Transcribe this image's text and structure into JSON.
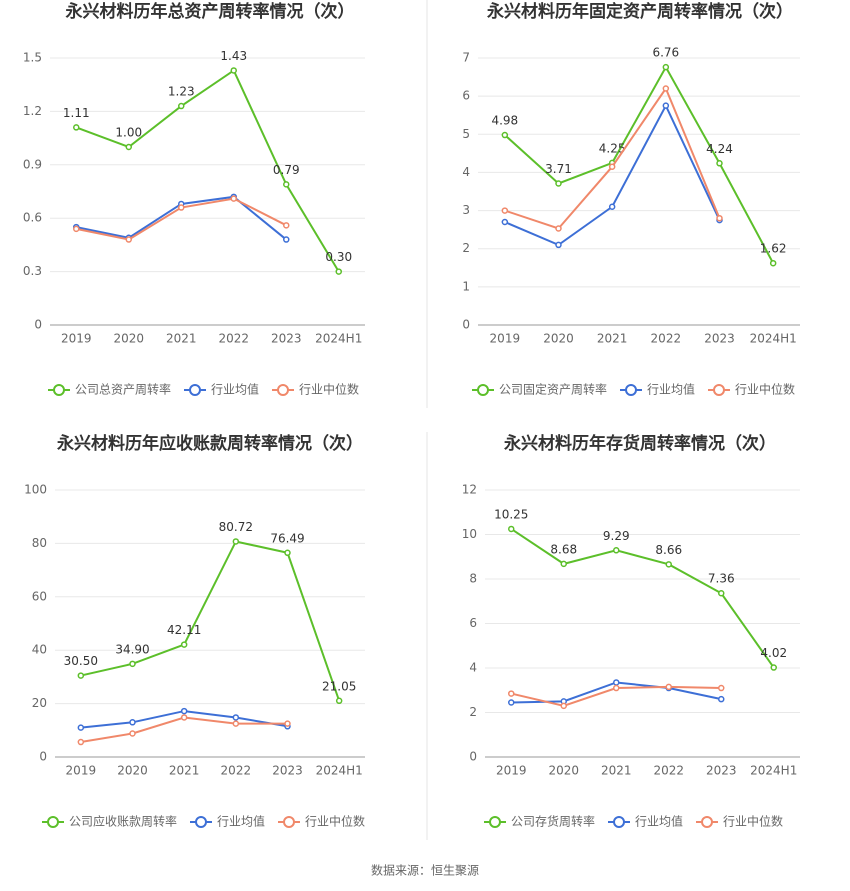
{
  "chart_data": [
    {
      "type": "line",
      "title": "永兴材料历年总资产周转率情况（次）",
      "categories": [
        "2019",
        "2020",
        "2021",
        "2022",
        "2023",
        "2024H1"
      ],
      "ylim": [
        0,
        1.5
      ],
      "yticks": [
        0,
        0.3,
        0.6,
        0.9,
        1.2,
        1.5
      ],
      "grid": true,
      "series": [
        {
          "name": "公司总资产周转率",
          "color": "#5cbf2a",
          "values": [
            1.11,
            1.0,
            1.23,
            1.43,
            0.79,
            0.3
          ],
          "value_labels": [
            "1.11",
            "1.00",
            "1.23",
            "1.43",
            "0.79",
            "0.30"
          ]
        },
        {
          "name": "行业均值",
          "color": "#3d6fd6",
          "values": [
            0.55,
            0.49,
            0.68,
            0.72,
            0.48,
            null
          ]
        },
        {
          "name": "行业中位数",
          "color": "#f0886a",
          "values": [
            0.54,
            0.48,
            0.66,
            0.71,
            0.56,
            null
          ]
        }
      ]
    },
    {
      "type": "line",
      "title": "永兴材料历年固定资产周转率情况（次）",
      "categories": [
        "2019",
        "2020",
        "2021",
        "2022",
        "2023",
        "2024H1"
      ],
      "ylim": [
        0,
        7
      ],
      "yticks": [
        0,
        1,
        2,
        3,
        4,
        5,
        6,
        7
      ],
      "grid": true,
      "series": [
        {
          "name": "公司固定资产周转率",
          "color": "#5cbf2a",
          "values": [
            4.98,
            3.71,
            4.25,
            6.76,
            4.24,
            1.62
          ],
          "value_labels": [
            "4.98",
            "3.71",
            "4.25",
            "6.76",
            "4.24",
            "1.62"
          ]
        },
        {
          "name": "行业均值",
          "color": "#3d6fd6",
          "values": [
            2.7,
            2.1,
            3.1,
            5.75,
            2.75,
            null
          ]
        },
        {
          "name": "行业中位数",
          "color": "#f0886a",
          "values": [
            3.0,
            2.53,
            4.15,
            6.2,
            2.8,
            null
          ]
        }
      ]
    },
    {
      "type": "line",
      "title": "永兴材料历年应收账款周转率情况（次）",
      "categories": [
        "2019",
        "2020",
        "2021",
        "2022",
        "2023",
        "2024H1"
      ],
      "ylim": [
        0,
        100
      ],
      "yticks": [
        0,
        20,
        40,
        60,
        80,
        100
      ],
      "grid": true,
      "series": [
        {
          "name": "公司应收账款周转率",
          "color": "#5cbf2a",
          "values": [
            30.5,
            34.9,
            42.11,
            80.72,
            76.49,
            21.05
          ],
          "value_labels": [
            "30.50",
            "34.90",
            "42.11",
            "80.72",
            "76.49",
            "21.05"
          ]
        },
        {
          "name": "行业均值",
          "color": "#3d6fd6",
          "values": [
            11,
            13,
            17.2,
            14.8,
            11.5,
            null
          ]
        },
        {
          "name": "行业中位数",
          "color": "#f0886a",
          "values": [
            5.6,
            8.8,
            14.8,
            12.5,
            12.5,
            null
          ]
        }
      ]
    },
    {
      "type": "line",
      "title": "永兴材料历年存货周转率情况（次）",
      "categories": [
        "2019",
        "2020",
        "2021",
        "2022",
        "2023",
        "2024H1"
      ],
      "ylim": [
        0,
        12
      ],
      "yticks": [
        0,
        2,
        4,
        6,
        8,
        10,
        12
      ],
      "grid": true,
      "series": [
        {
          "name": "公司存货周转率",
          "color": "#5cbf2a",
          "values": [
            10.25,
            8.68,
            9.29,
            8.66,
            7.36,
            4.02
          ],
          "value_labels": [
            "10.25",
            "8.68",
            "9.29",
            "8.66",
            "7.36",
            "4.02"
          ]
        },
        {
          "name": "行业均值",
          "color": "#3d6fd6",
          "values": [
            2.45,
            2.5,
            3.35,
            3.1,
            2.6,
            null
          ]
        },
        {
          "name": "行业中位数",
          "color": "#f0886a",
          "values": [
            2.85,
            2.3,
            3.1,
            3.15,
            3.1,
            null
          ]
        }
      ]
    }
  ],
  "source": "数据来源：恒生聚源"
}
